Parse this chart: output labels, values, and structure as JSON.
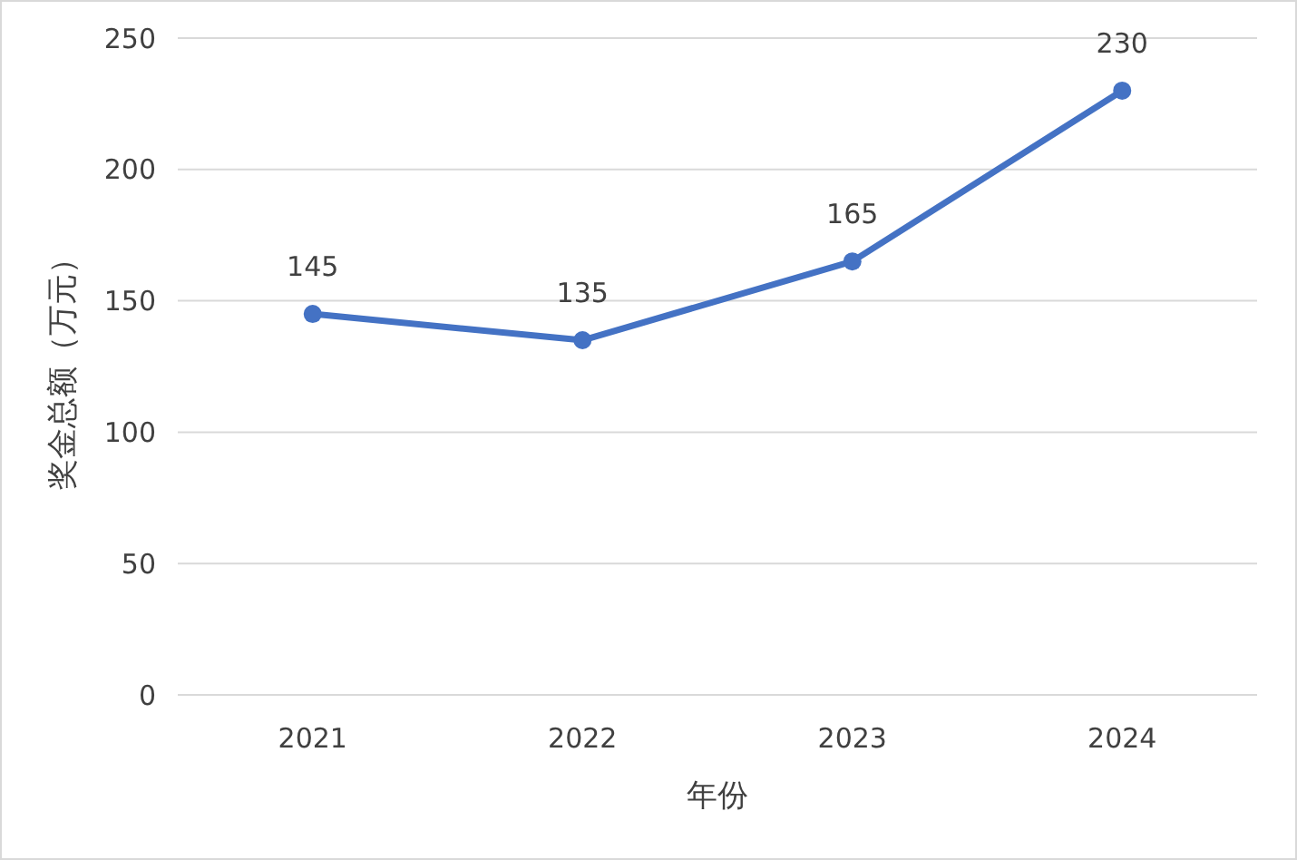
{
  "chart_data": {
    "type": "line",
    "xlabel": "年份",
    "ylabel": "奖金总额（万元）",
    "categories": [
      "2021",
      "2022",
      "2023",
      "2024"
    ],
    "series": [
      {
        "color": "#4472c4",
        "values": [
          145,
          135,
          165,
          230
        ]
      }
    ],
    "ylim": [
      0,
      250
    ],
    "yticks": [
      0,
      50,
      100,
      150,
      200,
      250
    ],
    "grid": "y",
    "marker": "circle",
    "line_style": "solid",
    "data_labels": true
  }
}
